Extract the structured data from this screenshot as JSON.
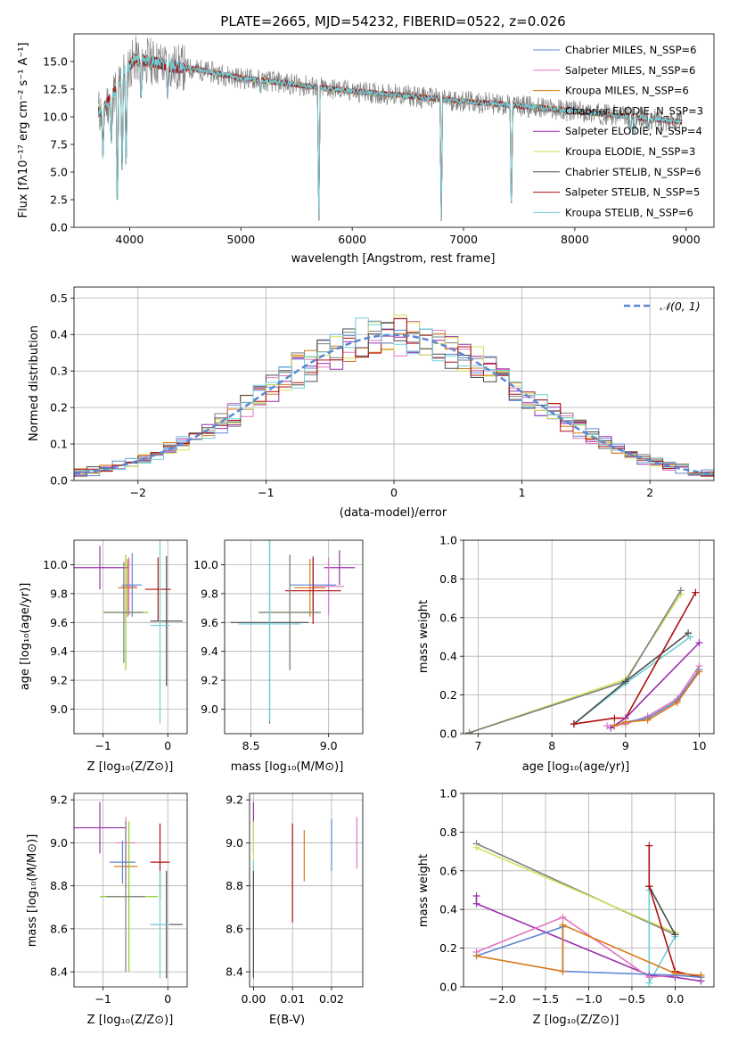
{
  "colors": {
    "chabrier_miles": "#5b87d6",
    "salpeter_miles": "#e377c2",
    "kroupa_miles": "#d97a1a",
    "chabrier_elodie": "#7f7f7f",
    "salpeter_elodie": "#9b2fae",
    "kroupa_elodie": "#d4e157",
    "chabrier_stelib": "#4d4d4d",
    "salpeter_stelib": "#b01010",
    "kroupa_stelib": "#6fd0d8",
    "gaussian": "#5b87d6",
    "green": "#8fcc2c"
  },
  "chart_data": [
    {
      "id": "spectrum",
      "type": "line",
      "title": "PLATE=2665, MJD=54232, FIBERID=0522, z=0.026",
      "xlabel": "wavelength [Angstrom, rest frame]",
      "ylabel": "Flux [fλ10⁻¹⁷ erg cm⁻² s⁻¹ A⁻¹]",
      "xlim": [
        3500,
        9250
      ],
      "ylim": [
        0,
        17.5
      ],
      "xticks": [
        "4000",
        "5000",
        "6000",
        "7000",
        "8000",
        "9000"
      ],
      "yticks": [
        "0.0",
        "2.5",
        "5.0",
        "7.5",
        "10.0",
        "12.5",
        "15.0"
      ],
      "legend_position": "top-right",
      "legend": [
        "Chabrier MILES, N_SSP=6",
        "Salpeter MILES, N_SSP=6",
        "Kroupa MILES, N_SSP=6",
        "Chabrier ELODIE, N_SSP=3",
        "Salpeter ELODIE, N_SSP=4",
        "Kroupa ELODIE, N_SSP=3",
        "Chabrier STELIB, N_SSP=6",
        "Salpeter STELIB, N_SSP=5",
        "Kroupa STELIB, N_SSP=6"
      ],
      "continuum": [
        [
          3750,
          10.5
        ],
        [
          3850,
          12.0
        ],
        [
          3950,
          14.0
        ],
        [
          4050,
          15.2
        ],
        [
          4200,
          15.0
        ],
        [
          4400,
          14.5
        ],
        [
          4600,
          14.3
        ],
        [
          4800,
          13.9
        ],
        [
          5000,
          13.5
        ],
        [
          5200,
          13.3
        ],
        [
          5500,
          12.9
        ],
        [
          6000,
          12.3
        ],
        [
          6500,
          11.9
        ],
        [
          7000,
          11.4
        ],
        [
          7500,
          11.0
        ],
        [
          8000,
          10.5
        ],
        [
          8500,
          10.0
        ],
        [
          9000,
          9.5
        ]
      ],
      "dips": [
        [
          3760,
          6.0
        ],
        [
          3835,
          7.0
        ],
        [
          3890,
          0.0
        ],
        [
          3933,
          4.0
        ],
        [
          3969,
          4.5
        ],
        [
          4102,
          11.0
        ],
        [
          4340,
          11.5
        ],
        [
          5175,
          12.0
        ],
        [
          5700,
          0.0
        ],
        [
          6800,
          0.0
        ],
        [
          7430,
          0.0
        ],
        [
          8500,
          8.5
        ],
        [
          8542,
          8.2
        ],
        [
          8662,
          8.6
        ]
      ]
    },
    {
      "id": "residuals",
      "type": "histogram",
      "xlabel": "(data-model)/error",
      "ylabel": "Normed distribution",
      "xlim": [
        -2.5,
        2.5
      ],
      "ylim": [
        0,
        0.53
      ],
      "xticks": [
        "−2",
        "−1",
        "0",
        "1",
        "2"
      ],
      "yticks": [
        "0.0",
        "0.1",
        "0.2",
        "0.3",
        "0.4",
        "0.5"
      ],
      "bin_width": 0.1,
      "legend_position": "top-right",
      "legend": [
        "𝒩(0, 1)"
      ]
    },
    {
      "id": "age_vs_Z",
      "type": "scatter",
      "xlabel": "Z [log₁₀(Z/Z⊙)]",
      "ylabel": "age  [log₁₀(age/yr)]",
      "xlim": [
        -1.45,
        0.3
      ],
      "ylim": [
        8.83,
        10.17
      ],
      "xticks": [
        "−1",
        "0"
      ],
      "yticks": [
        "9.0",
        "9.2",
        "9.4",
        "9.6",
        "9.8",
        "10.0"
      ],
      "points": [
        {
          "x": -1.05,
          "y": 9.98,
          "xerr": 0.45,
          "yerr": 0.15,
          "c": "salpeter_elodie"
        },
        {
          "x": -0.6,
          "y": 9.85,
          "xerr": 0.12,
          "yerr": 0.2,
          "c": "salpeter_miles"
        },
        {
          "x": -0.62,
          "y": 9.84,
          "xerr": 0.15,
          "yerr": 0.2,
          "c": "kroupa_miles"
        },
        {
          "x": -0.55,
          "y": 9.86,
          "xerr": 0.15,
          "yerr": 0.22,
          "c": "chabrier_miles"
        },
        {
          "x": -0.15,
          "y": 9.83,
          "xerr": 0.2,
          "yerr": 0.22,
          "c": "salpeter_stelib"
        },
        {
          "x": -0.65,
          "y": 9.67,
          "xerr": 0.35,
          "yerr": 0.4,
          "c": "green"
        },
        {
          "x": -0.68,
          "y": 9.67,
          "xerr": 0.3,
          "yerr": 0.35,
          "c": "chabrier_elodie"
        },
        {
          "x": -0.02,
          "y": 9.61,
          "xerr": 0.25,
          "yerr": 0.45,
          "c": "chabrier_stelib"
        },
        {
          "x": -0.12,
          "y": 9.58,
          "xerr": 0.15,
          "yerr": 0.68,
          "c": "kroupa_stelib"
        }
      ]
    },
    {
      "id": "age_vs_mass",
      "type": "scatter",
      "xlabel": "mass [log₁₀(M/M⊙)]",
      "ylabel": "",
      "xlim": [
        8.33,
        9.22
      ],
      "ylim": [
        8.83,
        10.17
      ],
      "xticks": [
        "8.5",
        "9.0"
      ],
      "yticks": [
        "9.0",
        "9.2",
        "9.4",
        "9.6",
        "9.8",
        "10.0"
      ],
      "points": [
        {
          "x": 9.07,
          "y": 9.98,
          "xerr": 0.1,
          "yerr": 0.12,
          "c": "salpeter_elodie"
        },
        {
          "x": 9.0,
          "y": 9.85,
          "xerr": 0.1,
          "yerr": 0.2,
          "c": "salpeter_miles"
        },
        {
          "x": 8.88,
          "y": 9.84,
          "xerr": 0.1,
          "yerr": 0.2,
          "c": "kroupa_miles"
        },
        {
          "x": 8.9,
          "y": 9.86,
          "xerr": 0.15,
          "yerr": 0.2,
          "c": "chabrier_miles"
        },
        {
          "x": 8.9,
          "y": 9.82,
          "xerr": 0.18,
          "yerr": 0.23,
          "c": "salpeter_stelib"
        },
        {
          "x": 8.75,
          "y": 9.67,
          "xerr": 0.2,
          "yerr": 0.4,
          "c": "green"
        },
        {
          "x": 8.75,
          "y": 9.67,
          "xerr": 0.2,
          "yerr": 0.4,
          "c": "chabrier_elodie"
        },
        {
          "x": 8.62,
          "y": 9.6,
          "xerr": 0.25,
          "yerr": 0.7,
          "c": "chabrier_stelib"
        },
        {
          "x": 8.62,
          "y": 9.59,
          "xerr": 0.2,
          "yerr": 0.68,
          "c": "kroupa_stelib"
        }
      ]
    },
    {
      "id": "weight_vs_age",
      "type": "line",
      "xlabel": "age  [log₁₀(age/yr)]",
      "ylabel": "mass weight",
      "xlim": [
        6.8,
        10.2
      ],
      "ylim": [
        0,
        1
      ],
      "xticks": [
        "7",
        "8",
        "9",
        "10"
      ],
      "yticks": [
        "0.0",
        "0.2",
        "0.4",
        "0.6",
        "0.8",
        "1.0"
      ],
      "series": [
        {
          "c": "kroupa_elodie",
          "pts": [
            [
              6.88,
              0.005
            ],
            [
              9.0,
              0.28
            ],
            [
              9.75,
              0.72
            ]
          ]
        },
        {
          "c": "chabrier_elodie",
          "pts": [
            [
              6.88,
              0.005
            ],
            [
              9.0,
              0.27
            ],
            [
              9.75,
              0.74
            ]
          ]
        },
        {
          "c": "kroupa_stelib",
          "pts": [
            [
              8.3,
              0.05
            ],
            [
              9.0,
              0.26
            ],
            [
              9.88,
              0.5
            ]
          ]
        },
        {
          "c": "chabrier_stelib",
          "pts": [
            [
              8.3,
              0.05
            ],
            [
              9.0,
              0.27
            ],
            [
              9.85,
              0.52
            ]
          ]
        },
        {
          "c": "salpeter_stelib",
          "pts": [
            [
              8.3,
              0.05
            ],
            [
              8.85,
              0.08
            ],
            [
              9.0,
              0.08
            ],
            [
              9.95,
              0.73
            ]
          ]
        },
        {
          "c": "salpeter_elodie",
          "pts": [
            [
              8.8,
              0.03
            ],
            [
              9.0,
              0.08
            ],
            [
              10.0,
              0.47
            ]
          ]
        },
        {
          "c": "salpeter_miles",
          "pts": [
            [
              8.75,
              0.04
            ],
            [
              9.0,
              0.05
            ],
            [
              9.3,
              0.09
            ],
            [
              9.7,
              0.18
            ],
            [
              10.0,
              0.35
            ]
          ]
        },
        {
          "c": "chabrier_miles",
          "pts": [
            [
              8.85,
              0.04
            ],
            [
              9.0,
              0.06
            ],
            [
              9.3,
              0.08
            ],
            [
              9.7,
              0.17
            ],
            [
              10.0,
              0.33
            ]
          ]
        },
        {
          "c": "kroupa_miles",
          "pts": [
            [
              8.85,
              0.04
            ],
            [
              9.0,
              0.06
            ],
            [
              9.3,
              0.07
            ],
            [
              9.7,
              0.16
            ],
            [
              10.0,
              0.32
            ]
          ]
        }
      ]
    },
    {
      "id": "mass_vs_Z",
      "type": "scatter",
      "xlabel": "Z [log₁₀(Z/Z⊙)]",
      "ylabel": "mass [log₁₀(M/M⊙)]",
      "xlim": [
        -1.45,
        0.3
      ],
      "ylim": [
        8.33,
        9.23
      ],
      "xticks": [
        "−1",
        "0"
      ],
      "yticks": [
        "8.4",
        "8.6",
        "8.8",
        "9.0",
        "9.2"
      ],
      "points": [
        {
          "x": -1.05,
          "y": 9.07,
          "xerr": 0.4,
          "yerr": 0.12,
          "c": "salpeter_elodie"
        },
        {
          "x": -0.65,
          "y": 9.0,
          "xerr": 0.15,
          "yerr": 0.12,
          "c": "salpeter_miles"
        },
        {
          "x": -0.65,
          "y": 8.89,
          "xerr": 0.18,
          "yerr": 0.1,
          "c": "kroupa_miles"
        },
        {
          "x": -0.7,
          "y": 8.91,
          "xerr": 0.2,
          "yerr": 0.1,
          "c": "chabrier_miles"
        },
        {
          "x": -0.12,
          "y": 8.91,
          "xerr": 0.15,
          "yerr": 0.18,
          "c": "salpeter_stelib"
        },
        {
          "x": -0.6,
          "y": 8.75,
          "xerr": 0.45,
          "yerr": 0.35,
          "c": "green"
        },
        {
          "x": -0.65,
          "y": 8.75,
          "xerr": 0.3,
          "yerr": 0.35,
          "c": "chabrier_elodie"
        },
        {
          "x": -0.02,
          "y": 8.62,
          "xerr": 0.25,
          "yerr": 0.25,
          "c": "chabrier_stelib"
        },
        {
          "x": -0.12,
          "y": 8.62,
          "xerr": 0.15,
          "yerr": 0.25,
          "c": "kroupa_stelib"
        }
      ]
    },
    {
      "id": "mass_vs_ebv",
      "type": "scatter",
      "xlabel": "E(B-V)",
      "ylabel": "",
      "xlim": [
        -0.001,
        0.028
      ],
      "ylim": [
        8.33,
        9.23
      ],
      "xticks": [
        "0.00",
        "0.01",
        "0.02"
      ],
      "yticks": [
        "8.4",
        "8.6",
        "8.8",
        "9.0",
        "9.2"
      ],
      "points": [
        {
          "x": 0.0,
          "y": 9.07,
          "yerr": 0.12,
          "c": "salpeter_elodie"
        },
        {
          "x": 0.0,
          "y": 8.98,
          "yerr": 0.12,
          "c": "kroupa_elodie"
        },
        {
          "x": 0.0,
          "y": 8.65,
          "yerr": 0.27,
          "c": "kroupa_stelib"
        },
        {
          "x": 0.0,
          "y": 8.62,
          "yerr": 0.25,
          "c": "chabrier_stelib"
        },
        {
          "x": 0.01,
          "y": 8.86,
          "yerr": 0.23,
          "c": "salpeter_stelib"
        },
        {
          "x": 0.013,
          "y": 8.94,
          "yerr": 0.12,
          "c": "kroupa_miles"
        },
        {
          "x": 0.02,
          "y": 8.99,
          "yerr": 0.12,
          "c": "chabrier_miles"
        },
        {
          "x": 0.0265,
          "y": 9.0,
          "yerr": 0.12,
          "c": "salpeter_miles"
        }
      ]
    },
    {
      "id": "weight_vs_Z",
      "type": "line",
      "xlabel": "Z [log₁₀(Z/Z⊙)]",
      "ylabel": "mass weight",
      "xlim": [
        -2.45,
        0.45
      ],
      "ylim": [
        0,
        1
      ],
      "xticks": [
        "−2.0",
        "−1.5",
        "−1.0",
        "−0.5",
        "0.0"
      ],
      "yticks": [
        "0.0",
        "0.2",
        "0.4",
        "0.6",
        "0.8",
        "1.0"
      ],
      "series": [
        {
          "c": "chabrier_elodie",
          "pts": [
            [
              -2.3,
              0.74
            ],
            [
              0.0,
              0.27
            ]
          ]
        },
        {
          "c": "kroupa_elodie",
          "pts": [
            [
              -2.3,
              0.72
            ],
            [
              0.0,
              0.28
            ]
          ]
        },
        {
          "c": "kroupa_stelib",
          "pts": [
            [
              -0.3,
              0.5
            ],
            [
              -0.3,
              0.02
            ],
            [
              0.0,
              0.26
            ]
          ]
        },
        {
          "c": "chabrier_stelib",
          "pts": [
            [
              -0.3,
              0.52
            ],
            [
              0.0,
              0.27
            ]
          ]
        },
        {
          "c": "salpeter_stelib",
          "pts": [
            [
              -0.3,
              0.73
            ],
            [
              -0.3,
              0.52
            ],
            [
              0.0,
              0.08
            ],
            [
              0.3,
              0.05
            ]
          ]
        },
        {
          "c": "salpeter_elodie",
          "pts": [
            [
              -2.3,
              0.47
            ],
            [
              -2.3,
              0.43
            ],
            [
              -0.3,
              0.06
            ],
            [
              0.0,
              0.05
            ],
            [
              0.3,
              0.03
            ]
          ]
        },
        {
          "c": "salpeter_miles",
          "pts": [
            [
              -2.3,
              0.18
            ],
            [
              -1.3,
              0.36
            ],
            [
              -0.3,
              0.05
            ],
            [
              0.0,
              0.06
            ]
          ]
        },
        {
          "c": "chabrier_miles",
          "pts": [
            [
              -2.3,
              0.16
            ],
            [
              -1.3,
              0.31
            ],
            [
              -1.3,
              0.08
            ],
            [
              0.0,
              0.06
            ],
            [
              0.3,
              0.05
            ]
          ]
        },
        {
          "c": "kroupa_miles",
          "pts": [
            [
              -2.3,
              0.16
            ],
            [
              -1.3,
              0.08
            ],
            [
              -1.3,
              0.32
            ],
            [
              0.0,
              0.07
            ],
            [
              0.3,
              0.06
            ]
          ]
        }
      ]
    }
  ]
}
